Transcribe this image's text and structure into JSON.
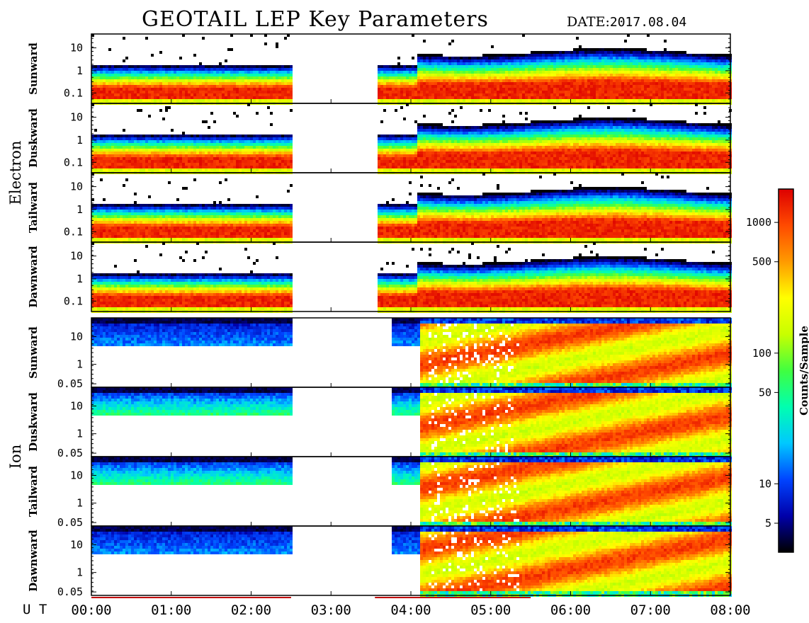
{
  "title": "GEOTAIL LEP Key Parameters",
  "date_label": "DATE:",
  "date_value": "2017.08.04",
  "ut_label": "U T",
  "chart_data": {
    "type": "heatmap",
    "x_tick_labels": [
      "00:00",
      "01:00",
      "02:00",
      "03:00",
      "04:00",
      "05:00",
      "06:00",
      "07:00",
      "08:00"
    ],
    "x_range_hours": [
      0,
      8
    ],
    "data_gaps_hours": [
      [
        2.5,
        3.55
      ]
    ],
    "groups": [
      {
        "label": "Electron",
        "panels": [
          "Sunward",
          "Duskward",
          "Tailward",
          "Dawnward"
        ],
        "y_scale": "log",
        "y_ticks": [
          "10",
          "1",
          "0.1"
        ]
      },
      {
        "label": "Ion",
        "panels": [
          "Sunward",
          "Duskward",
          "Tailward",
          "Dawnward"
        ],
        "y_scale": "log",
        "y_ticks": [
          "10",
          "1",
          "0.05"
        ]
      }
    ],
    "colorbar": {
      "label": "Counts/Sample",
      "scale": "log",
      "tick_labels": [
        "1000",
        "500",
        "100",
        "50",
        "10",
        "5"
      ],
      "tick_values": [
        1000,
        500,
        100,
        50,
        10,
        5
      ],
      "range": [
        3,
        1800
      ],
      "colors": [
        "#000000",
        "#0000aa",
        "#0044ff",
        "#00c8ff",
        "#00ffb0",
        "#40ff40",
        "#c8ff00",
        "#ffff00",
        "#ff9a00",
        "#ff4a00",
        "#dd0000"
      ]
    }
  }
}
